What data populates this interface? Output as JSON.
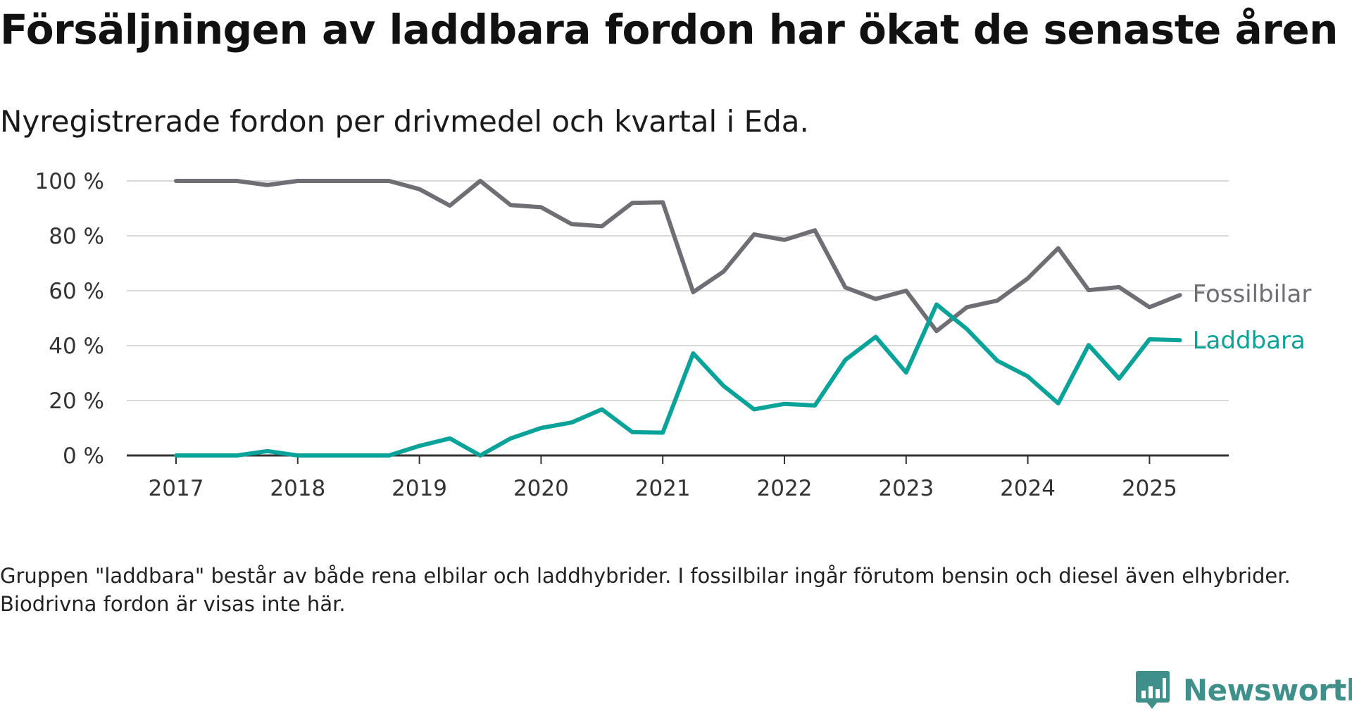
{
  "header": {
    "title": "Försäljningen av laddbara fordon har ökat de senaste åren",
    "subtitle": "Nyregistrerade fordon per drivmedel och kvartal i Eda."
  },
  "footnote": "Gruppen \"laddbara\" består av både rena elbilar och laddhybrider. I fossilbilar ingår förutom bensin och diesel även elhybrider. Biodrivna fordon är visas inte här.",
  "brand": {
    "name": "Newsworthy",
    "logo_icon": "bar-chart-speech-bubble-icon"
  },
  "colors": {
    "fossil": "#6f6e74",
    "laddbara": "#0aa39a",
    "grid": "#d9d9d9",
    "axis": "#333333",
    "brand": "#3f8f8a"
  },
  "chart_data": {
    "type": "line",
    "title": "Försäljningen av laddbara fordon har ökat de senaste åren",
    "subtitle": "Nyregistrerade fordon per drivmedel och kvartal i Eda.",
    "x": [
      "2017-Q1",
      "2017-Q2",
      "2017-Q3",
      "2017-Q4",
      "2018-Q1",
      "2018-Q2",
      "2018-Q3",
      "2018-Q4",
      "2019-Q1",
      "2019-Q2",
      "2019-Q3",
      "2019-Q4",
      "2020-Q1",
      "2020-Q2",
      "2020-Q3",
      "2020-Q4",
      "2021-Q1",
      "2021-Q2",
      "2021-Q3",
      "2021-Q4",
      "2022-Q1",
      "2022-Q2",
      "2022-Q3",
      "2022-Q4",
      "2023-Q1",
      "2023-Q2",
      "2023-Q3",
      "2023-Q4",
      "2024-Q1",
      "2024-Q2",
      "2024-Q3",
      "2024-Q4",
      "2025-Q1",
      "2025-Q2"
    ],
    "xticks": [
      "2017",
      "2018",
      "2019",
      "2020",
      "2021",
      "2022",
      "2023",
      "2024",
      "2025"
    ],
    "yticks": [
      "0 %",
      "20 %",
      "40 %",
      "60 %",
      "80 %",
      "100 %"
    ],
    "ytick_values": [
      0,
      20,
      40,
      60,
      80,
      100
    ],
    "ylim": [
      0,
      100
    ],
    "grid": true,
    "legend": "direct labels at line ends",
    "series": [
      {
        "name": "Fossilbilar",
        "color": "#6f6e74",
        "values": [
          100,
          100,
          100,
          98.5,
          100,
          100,
          100,
          100,
          97,
          91,
          100,
          91.2,
          90.4,
          84.3,
          83.5,
          92,
          92.2,
          59.5,
          67,
          80.5,
          78.5,
          82,
          61.2,
          57,
          60,
          45.3,
          54,
          56.4,
          64.5,
          75.5,
          60.2,
          61.3,
          54,
          58.4
        ]
      },
      {
        "name": "Laddbara",
        "color": "#0aa39a",
        "values": [
          0,
          0,
          0,
          1.6,
          0,
          0,
          0,
          0,
          3.5,
          6.2,
          0,
          6.2,
          10,
          12,
          16.8,
          8.5,
          8.3,
          37.2,
          25.3,
          16.8,
          18.8,
          18.2,
          34.8,
          43.2,
          30.2,
          55,
          46,
          34.5,
          28.8,
          19,
          40.2,
          28,
          42.3,
          42
        ]
      }
    ]
  }
}
